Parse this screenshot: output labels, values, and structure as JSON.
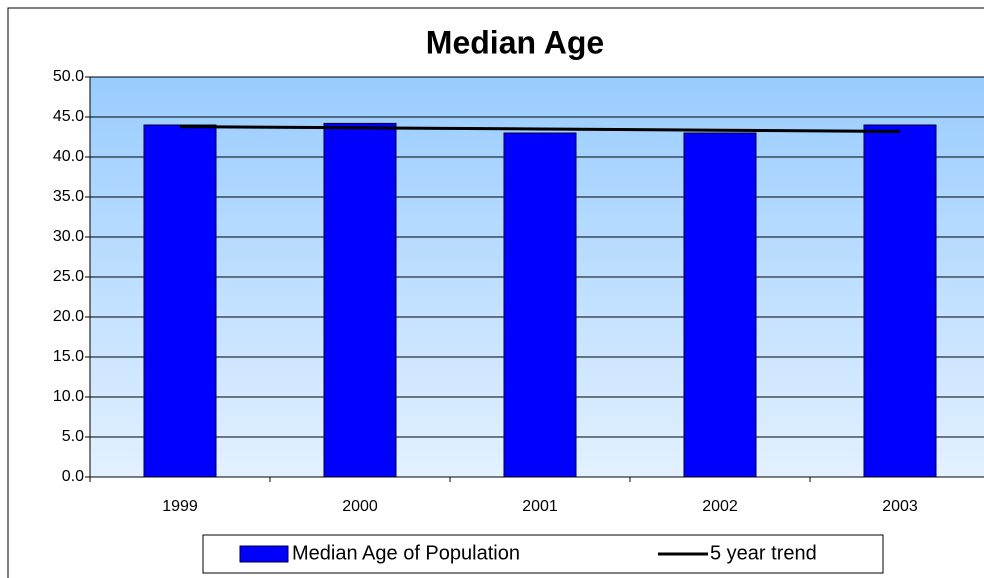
{
  "chart_data": {
    "type": "bar",
    "title": "Median Age",
    "categories": [
      "1999",
      "2000",
      "2001",
      "2002",
      "2003"
    ],
    "series": [
      {
        "name": "Median Age of Population",
        "color": "#0000ff",
        "type": "bar",
        "values": [
          44.0,
          44.2,
          43.0,
          43.0,
          44.0
        ]
      },
      {
        "name": "5 year trend",
        "color": "#000000",
        "type": "line",
        "values": [
          43.8,
          43.65,
          43.5,
          43.35,
          43.2
        ]
      }
    ],
    "ylim": [
      0,
      50
    ],
    "yticks": [
      {
        "value": 0,
        "label": "0.0"
      },
      {
        "value": 5,
        "label": "5.0"
      },
      {
        "value": 10,
        "label": "10.0"
      },
      {
        "value": 15,
        "label": "15.0"
      },
      {
        "value": 20,
        "label": "20.0"
      },
      {
        "value": 25,
        "label": "25.0"
      },
      {
        "value": 30,
        "label": "30.0"
      },
      {
        "value": 35,
        "label": "35.0"
      },
      {
        "value": 40,
        "label": "40.0"
      },
      {
        "value": 45,
        "label": "45.0"
      },
      {
        "value": 50,
        "label": "50.0"
      }
    ],
    "grid": true,
    "legend": "bottom"
  }
}
